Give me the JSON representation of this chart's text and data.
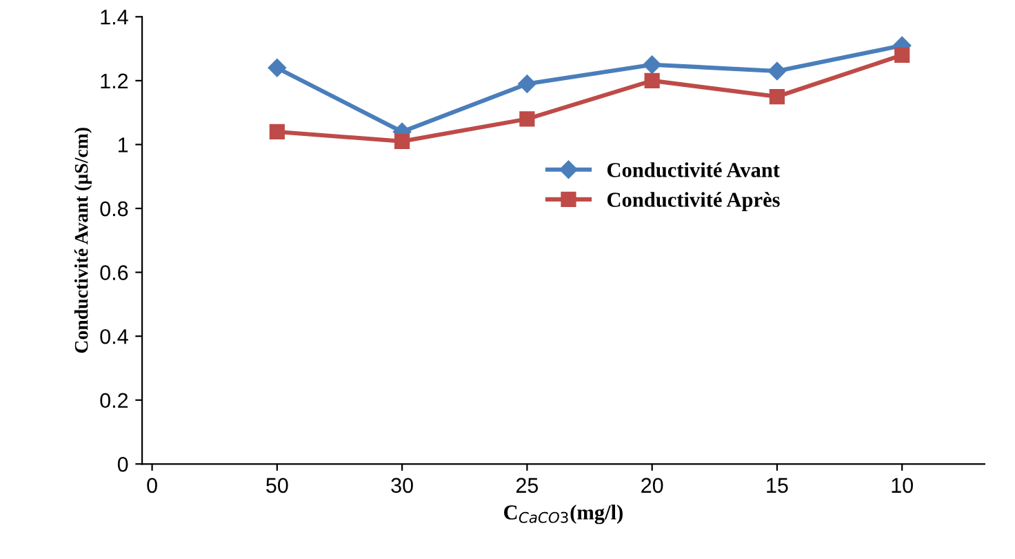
{
  "chart_data": {
    "type": "line",
    "xlabel": "C$_{CaCO3}$(mg/l)",
    "ylabel": "Conductivité Avant (µS/cm)",
    "categories": [
      "0",
      "50",
      "30",
      "25",
      "20",
      "15",
      "10"
    ],
    "series": [
      {
        "name": "Conductivité Avant",
        "color": "#4a7ebb",
        "marker": "diamond",
        "values": [
          null,
          1.24,
          1.04,
          1.19,
          1.25,
          1.23,
          1.31
        ]
      },
      {
        "name": "Conductivité Après",
        "color": "#be4b48",
        "marker": "square",
        "values": [
          null,
          1.04,
          1.01,
          1.08,
          1.2,
          1.15,
          1.28
        ]
      }
    ],
    "ylim": [
      0,
      1.4
    ],
    "yticks": [
      0,
      0.2,
      0.4,
      0.6,
      0.8,
      1,
      1.2,
      1.4
    ],
    "grid": false,
    "legend": "right",
    "line_style": "solid"
  }
}
